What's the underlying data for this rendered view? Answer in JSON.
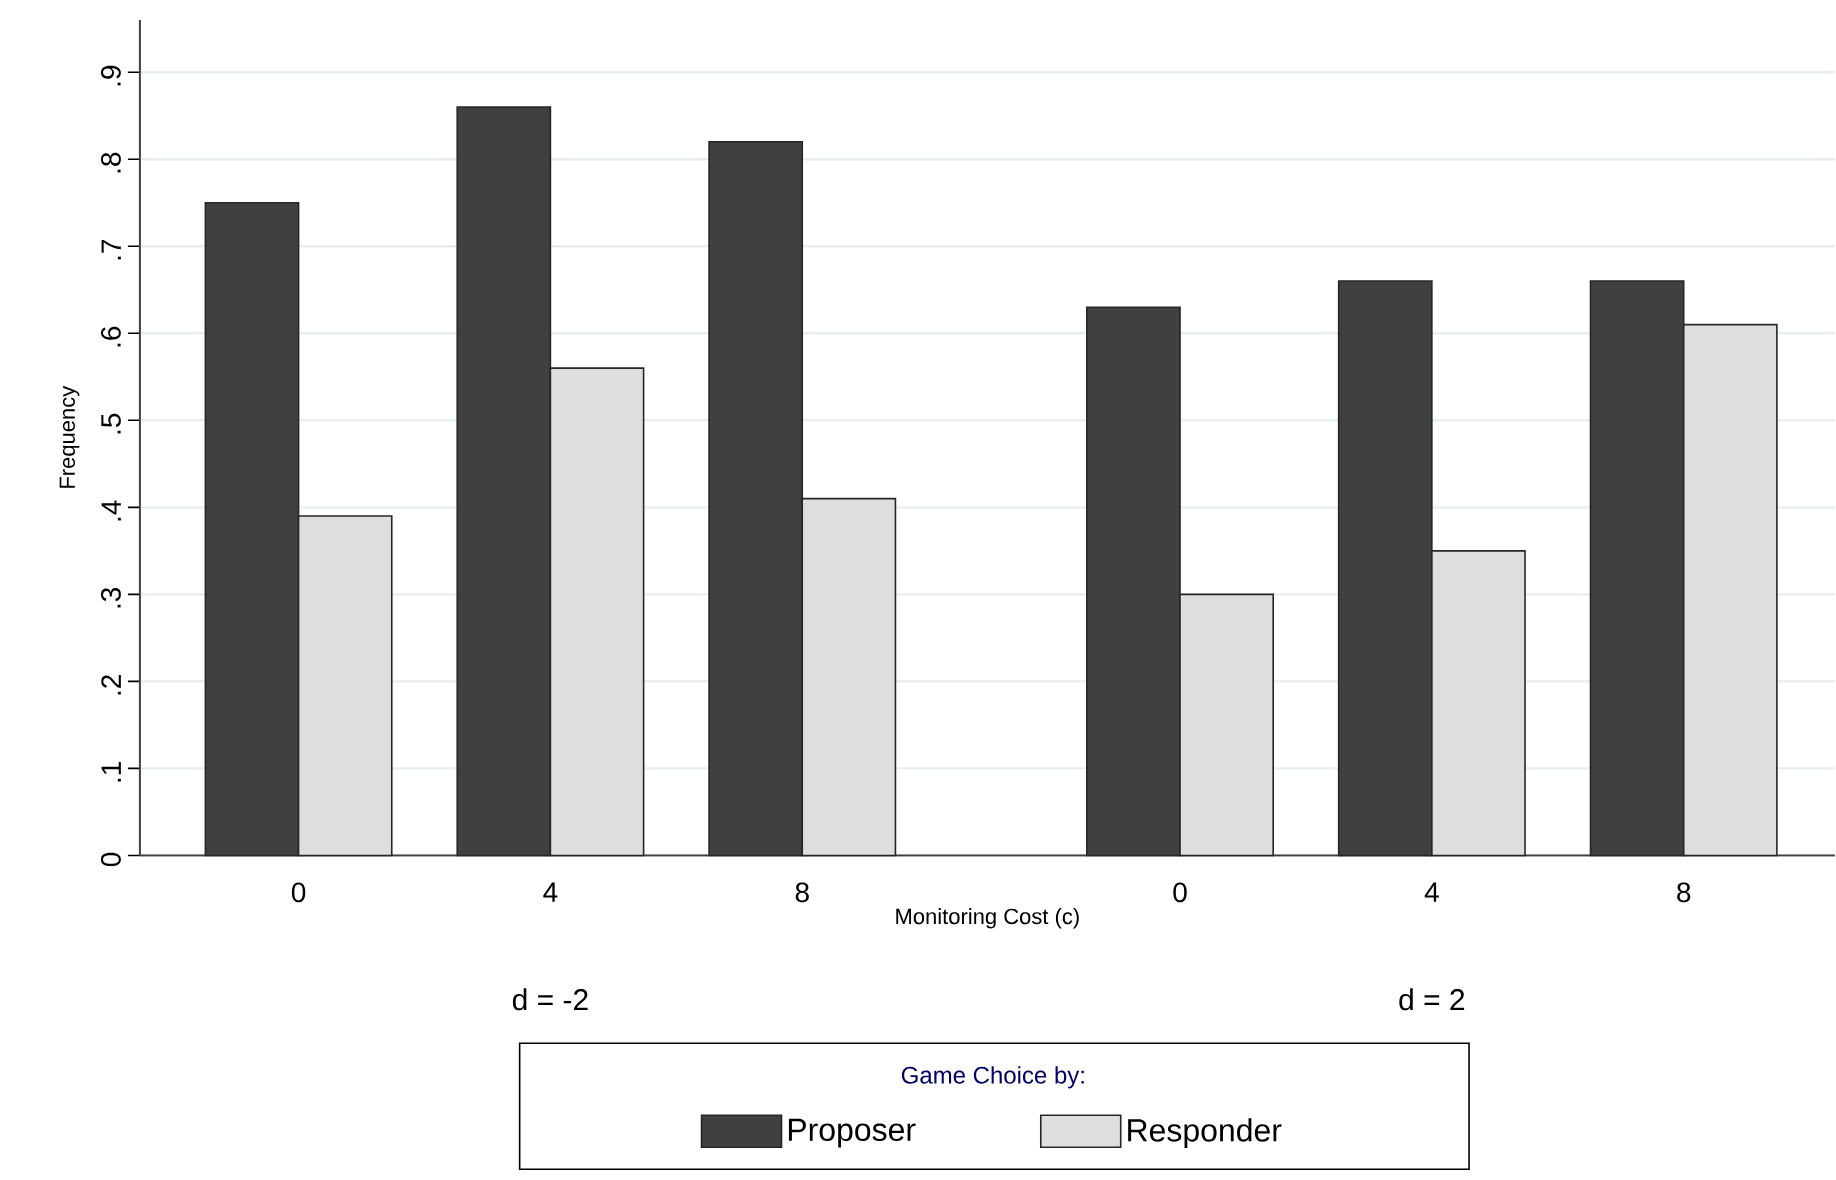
{
  "chart_data": {
    "type": "bar",
    "xlabel": "Monitoring Cost (c)",
    "ylabel": "Frequency",
    "legend_title": "Game Choice by:",
    "categories": [
      "0",
      "4",
      "8",
      "0",
      "4",
      "8"
    ],
    "series": [
      {
        "name": "Proposer",
        "color": "#404040",
        "values": [
          0.75,
          0.86,
          0.82,
          0.63,
          0.66,
          0.66
        ]
      },
      {
        "name": "Responder",
        "color": "#dedede",
        "values": [
          0.39,
          0.56,
          0.41,
          0.3,
          0.35,
          0.61
        ]
      }
    ],
    "ylim": [
      0,
      0.96
    ],
    "yticks": [
      {
        "value": 0,
        "label": "0"
      },
      {
        "value": 0.1,
        "label": ".1"
      },
      {
        "value": 0.2,
        "label": ".2"
      },
      {
        "value": 0.3,
        "label": ".3"
      },
      {
        "value": 0.4,
        "label": ".4"
      },
      {
        "value": 0.5,
        "label": ".5"
      },
      {
        "value": 0.6,
        "label": ".6"
      },
      {
        "value": 0.7,
        "label": ".7"
      },
      {
        "value": 0.8,
        "label": ".8"
      },
      {
        "value": 0.9,
        "label": ".9"
      }
    ],
    "grid": "y",
    "legend": "bottom",
    "annotations": [
      "d = -2",
      "d = 2"
    ]
  }
}
